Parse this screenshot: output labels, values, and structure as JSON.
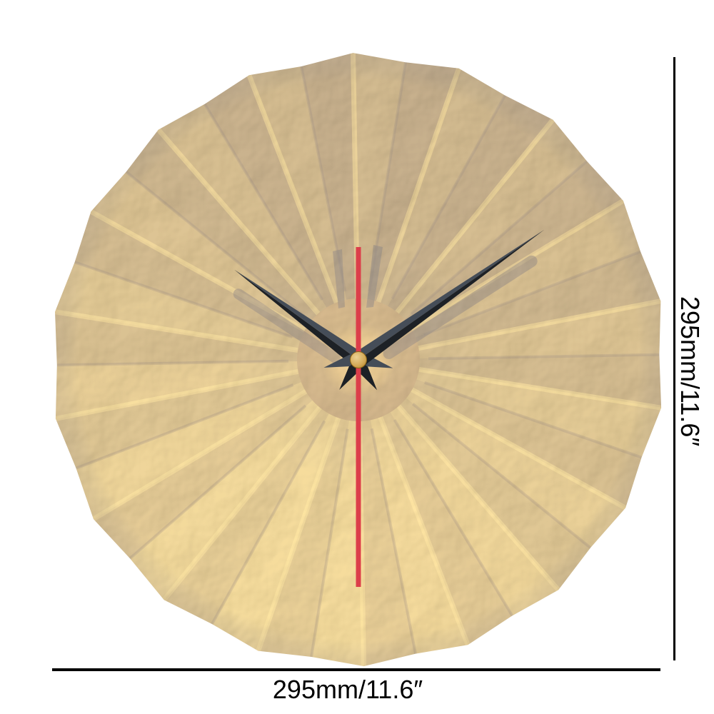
{
  "dimensions": {
    "width_label": "295mm/11.6″",
    "height_label": "295mm/11.6″"
  },
  "clock": {
    "time_shown": "10:09:30",
    "pleats": 18,
    "hands": {
      "hour_angle_deg": -54,
      "minute_angle_deg": 55,
      "second_angle_deg": 180,
      "hour_length": 215,
      "minute_length": 318,
      "second_length": 318,
      "second_tail": 158
    },
    "colors": {
      "gold_light": "#f4d264",
      "gold_base": "#d6a82c",
      "gold_dark": "#8a6410",
      "gold_deep": "#5e4008",
      "ridge_highlight": "#ffe178",
      "center_disc": "#cda02e",
      "hand_dark": "#1d2126",
      "hand_light": "#454d58",
      "second_hand": "#dc3e4a",
      "pin_light": "#ecd193",
      "pin_dark": "#b98a33",
      "shadow_brown": "#48300a",
      "dimension_line": "#000000",
      "background": "#ffffff"
    }
  }
}
